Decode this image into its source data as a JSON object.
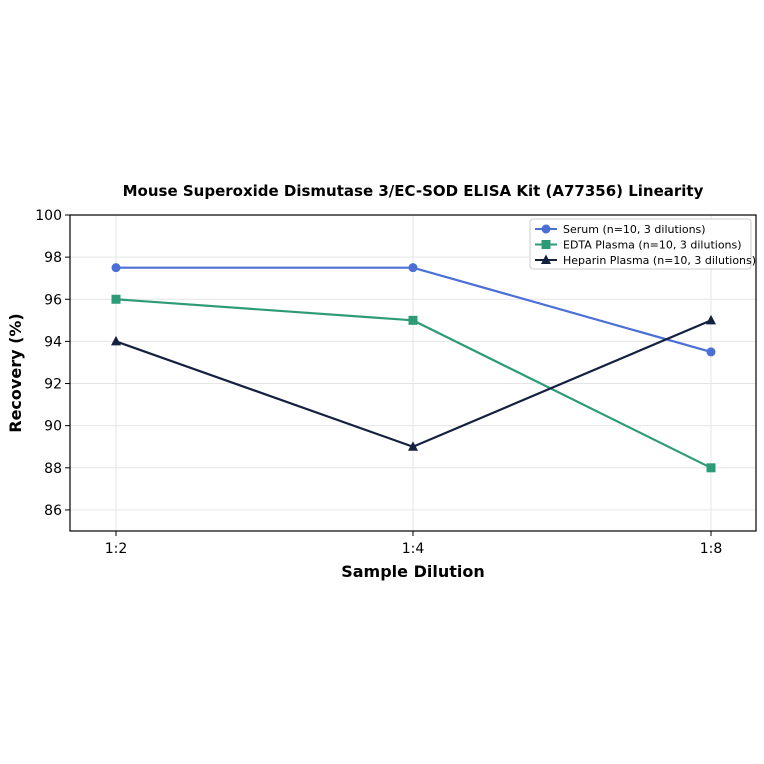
{
  "chart_data": {
    "type": "line",
    "title": "Mouse Superoxide Dismutase 3/EC-SOD ELISA Kit (A77356) Linearity",
    "xlabel": "Sample Dilution",
    "ylabel": "Recovery (%)",
    "categories": [
      "1:2",
      "1:4",
      "1:8"
    ],
    "ylim": [
      85,
      100
    ],
    "yticks": [
      86,
      88,
      90,
      92,
      94,
      96,
      98,
      100
    ],
    "grid": true,
    "legend_position": "top-right",
    "series": [
      {
        "name": "Serum (n=10, 3 dilutions)",
        "values": [
          97.5,
          97.5,
          93.5
        ],
        "color": "#4c6fd6",
        "marker": "circle"
      },
      {
        "name": "EDTA Plasma (n=10, 3 dilutions)",
        "values": [
          96,
          95,
          88
        ],
        "color": "#2e9b78",
        "marker": "square"
      },
      {
        "name": "Heparin Plasma (n=10, 3 dilutions)",
        "values": [
          94,
          89,
          95
        ],
        "color": "#14203f",
        "marker": "triangle"
      }
    ]
  }
}
